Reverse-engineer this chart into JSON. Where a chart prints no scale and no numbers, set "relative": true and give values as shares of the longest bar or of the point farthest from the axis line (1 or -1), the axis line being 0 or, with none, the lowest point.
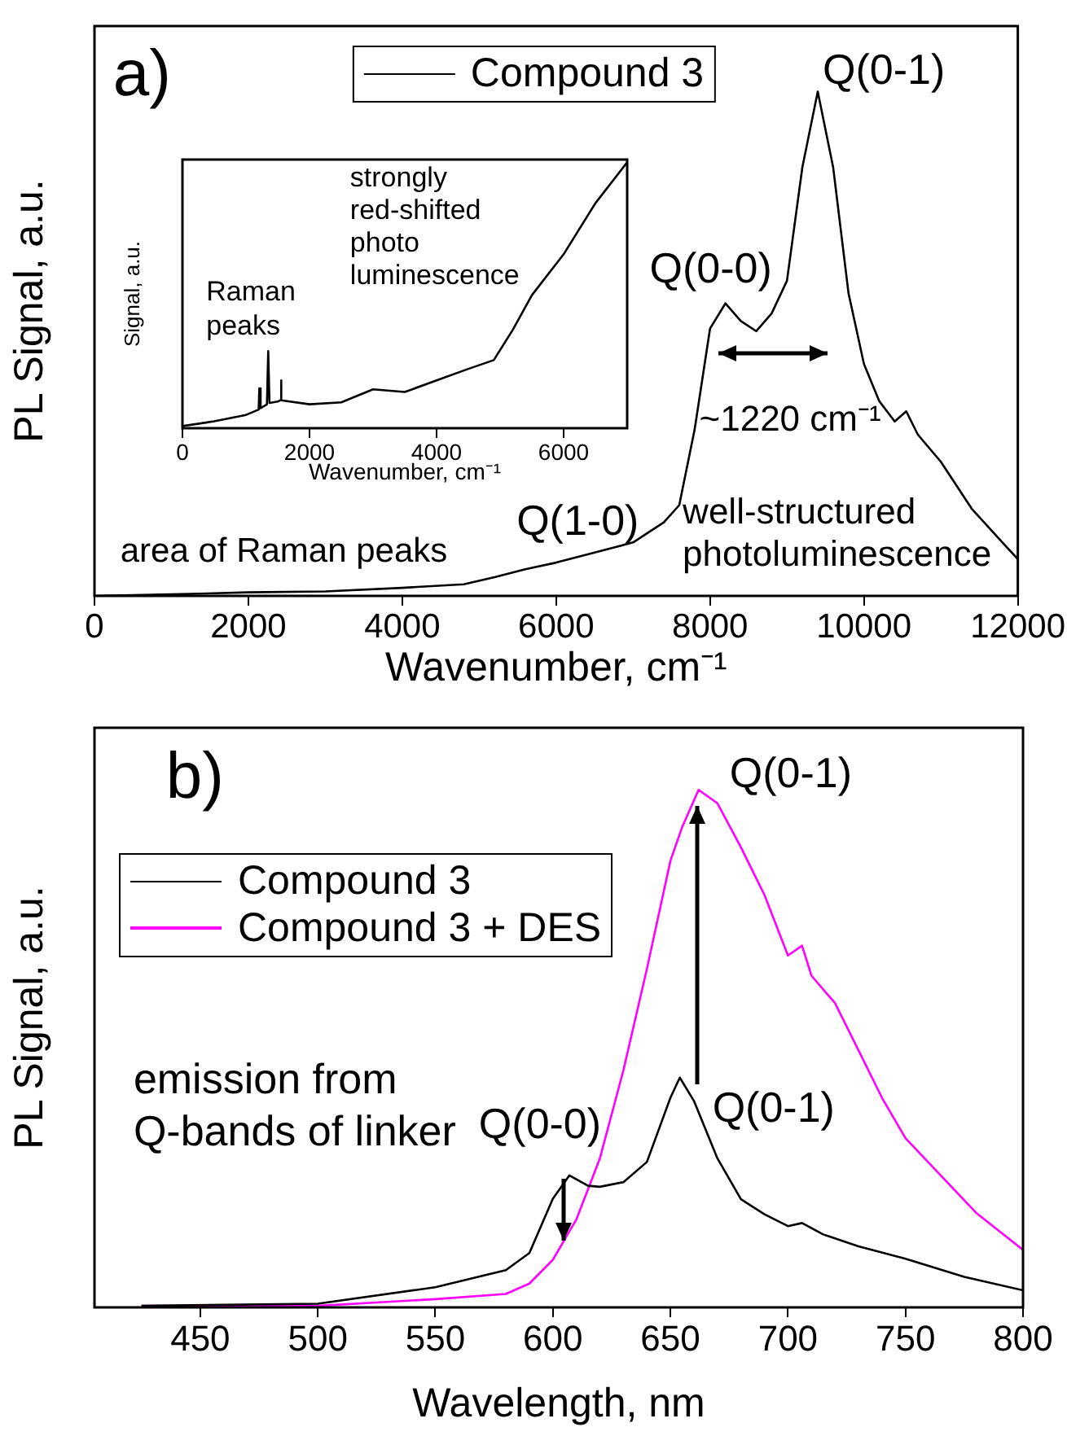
{
  "chart_data": [
    {
      "type": "line",
      "relative": true,
      "xlabel": "Wavenumber, cm⁻¹",
      "ylabel": "PL Signal, a.u.",
      "xlim": [
        0,
        12000
      ],
      "xticks": [
        0,
        2000,
        4000,
        6000,
        8000,
        10000,
        12000
      ],
      "tick_labels": "x",
      "legend": "top",
      "marker": "none",
      "grid": false,
      "x": [
        0,
        1000,
        2000,
        3000,
        4000,
        4800,
        5200,
        5600,
        6000,
        6500,
        7000,
        7400,
        7600,
        7800,
        8000,
        8200,
        8400,
        8600,
        8800,
        9000,
        9200,
        9400,
        9600,
        9800,
        10000,
        10200,
        10400,
        10550,
        10700,
        11000,
        11400,
        11800,
        12000
      ],
      "series": [
        {
          "name": "Compound 3",
          "color": "#000000",
          "values": [
            0,
            0.003,
            0.007,
            0.009,
            0.016,
            0.023,
            0.037,
            0.053,
            0.066,
            0.086,
            0.106,
            0.146,
            0.18,
            0.33,
            0.53,
            0.58,
            0.545,
            0.525,
            0.56,
            0.625,
            0.85,
            1,
            0.85,
            0.6,
            0.46,
            0.386,
            0.346,
            0.366,
            0.32,
            0.266,
            0.173,
            0.106,
            0.073
          ]
        }
      ],
      "annotations": [
        "a)",
        {
          "text": "Q(0-1)",
          "x": 9400,
          "y": 1
        },
        {
          "text": "Q(0-0)",
          "x": 8200,
          "y": 0.58
        },
        "~1220 cm⁻¹",
        {
          "text": "Q(1-0)",
          "x": 7000,
          "y": 0.106
        },
        "well-structured photoluminescence",
        "area of Raman peaks"
      ]
    },
    {
      "type": "line",
      "relative": true,
      "xlabel": "Wavenumber, cm⁻¹",
      "ylabel": "Signal, a.u.",
      "xlim": [
        0,
        7000
      ],
      "xticks": [
        0,
        2000,
        4000,
        6000
      ],
      "tick_labels": "x",
      "marker": "none",
      "grid": false,
      "x": [
        0,
        500,
        1000,
        1200,
        1210,
        1230,
        1300,
        1330,
        1350,
        1370,
        1500,
        1540,
        1550,
        1560,
        2000,
        2500,
        3000,
        3500,
        4000,
        4500,
        4900,
        5200,
        5500,
        6000,
        6500,
        7000
      ],
      "series": [
        {
          "color": "#000000",
          "values": [
            0.008,
            0.026,
            0.05,
            0.07,
            0.15,
            0.075,
            0.085,
            0.09,
            0.29,
            0.095,
            0.1,
            0.105,
            0.18,
            0.105,
            0.09,
            0.097,
            0.146,
            0.136,
            0.18,
            0.223,
            0.256,
            0.37,
            0.5,
            0.654,
            0.846,
            1
          ]
        }
      ],
      "annotations": [
        {
          "text": "Raman peaks",
          "x": 1350,
          "y": 0.29
        },
        "strongly red-shifted photo luminescence"
      ]
    },
    {
      "type": "line",
      "relative": true,
      "xlabel": "Wavelength, nm",
      "ylabel": "PL Signal, a.u.",
      "xlim": [
        405,
        800
      ],
      "xticks": [
        450,
        500,
        550,
        600,
        650,
        700,
        750,
        800
      ],
      "tick_labels": "x",
      "legend": "top left",
      "marker": "none",
      "grid": false,
      "series": [
        {
          "name": "Compound 3",
          "color": "#000000",
          "x": [
            425,
            500,
            550,
            580,
            590,
            600,
            607,
            615,
            620,
            630,
            640,
            650,
            654,
            660,
            670,
            680,
            690,
            700,
            706,
            715,
            730,
            750,
            775,
            800
          ],
          "values": [
            0.003,
            0.007,
            0.039,
            0.072,
            0.105,
            0.21,
            0.255,
            0.235,
            0.233,
            0.242,
            0.281,
            0.405,
            0.444,
            0.399,
            0.288,
            0.209,
            0.18,
            0.157,
            0.163,
            0.141,
            0.118,
            0.094,
            0.059,
            0.033
          ]
        },
        {
          "name": "Compound 3 + DES",
          "color": "#ff00ff",
          "x": [
            425,
            500,
            550,
            580,
            590,
            600,
            610,
            620,
            630,
            640,
            650,
            655,
            662,
            670,
            680,
            690,
            700,
            706,
            710,
            720,
            730,
            740,
            750,
            765,
            780,
            800
          ],
          "values": [
            0.003,
            0.003,
            0.016,
            0.026,
            0.046,
            0.092,
            0.17,
            0.288,
            0.458,
            0.654,
            0.863,
            0.928,
            1,
            0.974,
            0.889,
            0.797,
            0.68,
            0.699,
            0.641,
            0.588,
            0.497,
            0.405,
            0.327,
            0.255,
            0.183,
            0.111
          ]
        }
      ],
      "annotations": [
        "b)",
        {
          "text": "Q(0-1)",
          "x": 662,
          "y": 1
        },
        {
          "text": "Q(0-1)",
          "x": 654,
          "y": 0.444
        },
        {
          "text": "Q(0-0)",
          "x": 607,
          "y": 0.255
        },
        "emission from Q-bands of linker"
      ]
    }
  ]
}
